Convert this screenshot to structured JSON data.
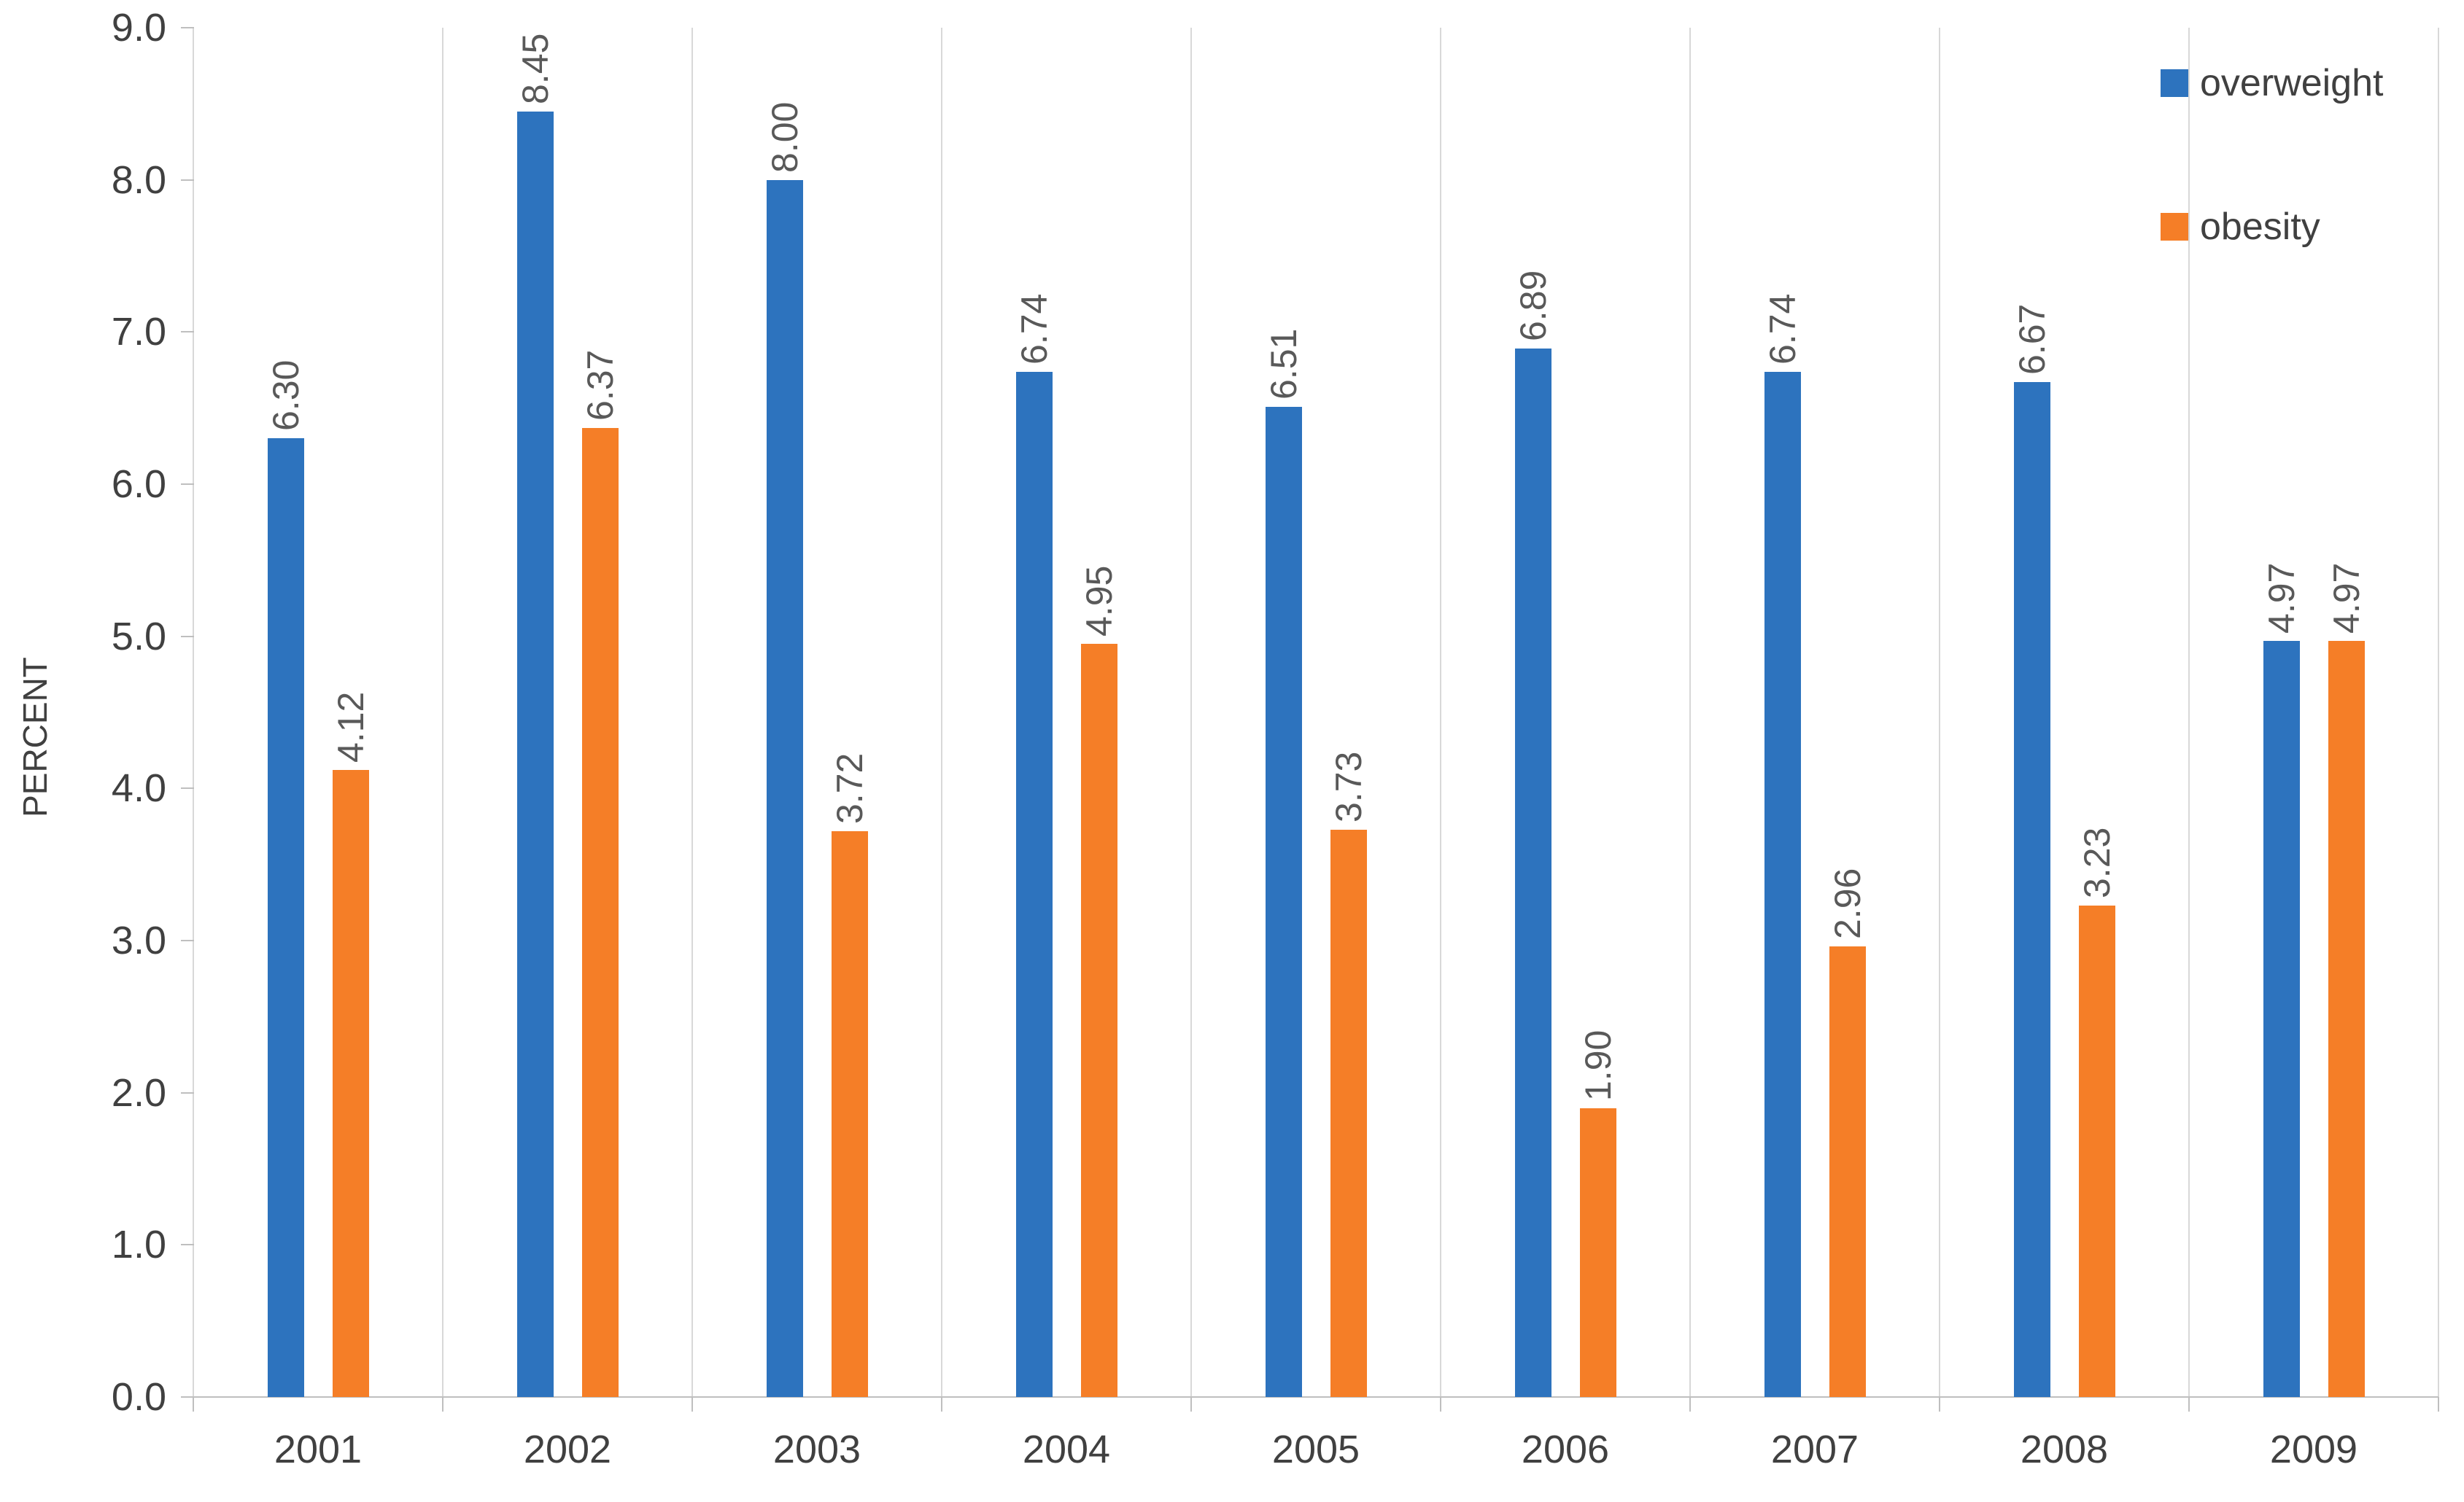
{
  "chart_data": {
    "type": "bar",
    "title": "",
    "ylabel": "PERCENT",
    "xlabel": "",
    "categories": [
      "2001",
      "2002",
      "2003",
      "2004",
      "2005",
      "2006",
      "2007",
      "2008",
      "2009"
    ],
    "series": [
      {
        "name": "overweight",
        "color": "#2D73BE",
        "values": [
          6.3,
          8.45,
          8.0,
          6.74,
          6.51,
          6.89,
          6.74,
          6.67,
          4.97
        ],
        "labels": [
          "6.30",
          "8.45",
          "8.00",
          "6.74",
          "6.51",
          "6.89",
          "6.74",
          "6.67",
          "4.97"
        ]
      },
      {
        "name": "obesity",
        "color": "#F57E27",
        "values": [
          4.12,
          6.37,
          3.72,
          4.95,
          3.73,
          1.9,
          2.96,
          3.23,
          4.97
        ],
        "labels": [
          "4.12",
          "6.37",
          "3.72",
          "4.95",
          "3.73",
          "1.90",
          "2.96",
          "3.23",
          "4.97"
        ]
      }
    ],
    "ylim": [
      0,
      9
    ],
    "ytick_step": 1,
    "ytick_labels": [
      "0.0",
      "1.0",
      "2.0",
      "3.0",
      "4.0",
      "5.0",
      "6.0",
      "7.0",
      "8.0",
      "9.0"
    ],
    "grid": "vertical-category-boundaries",
    "legend_position": "top-right",
    "colors": {
      "grid": "#D8D8D8",
      "axis": "#BFBFBF",
      "tick_label": "#404040",
      "value_label": "#595959",
      "legend_text": "#404040"
    }
  }
}
